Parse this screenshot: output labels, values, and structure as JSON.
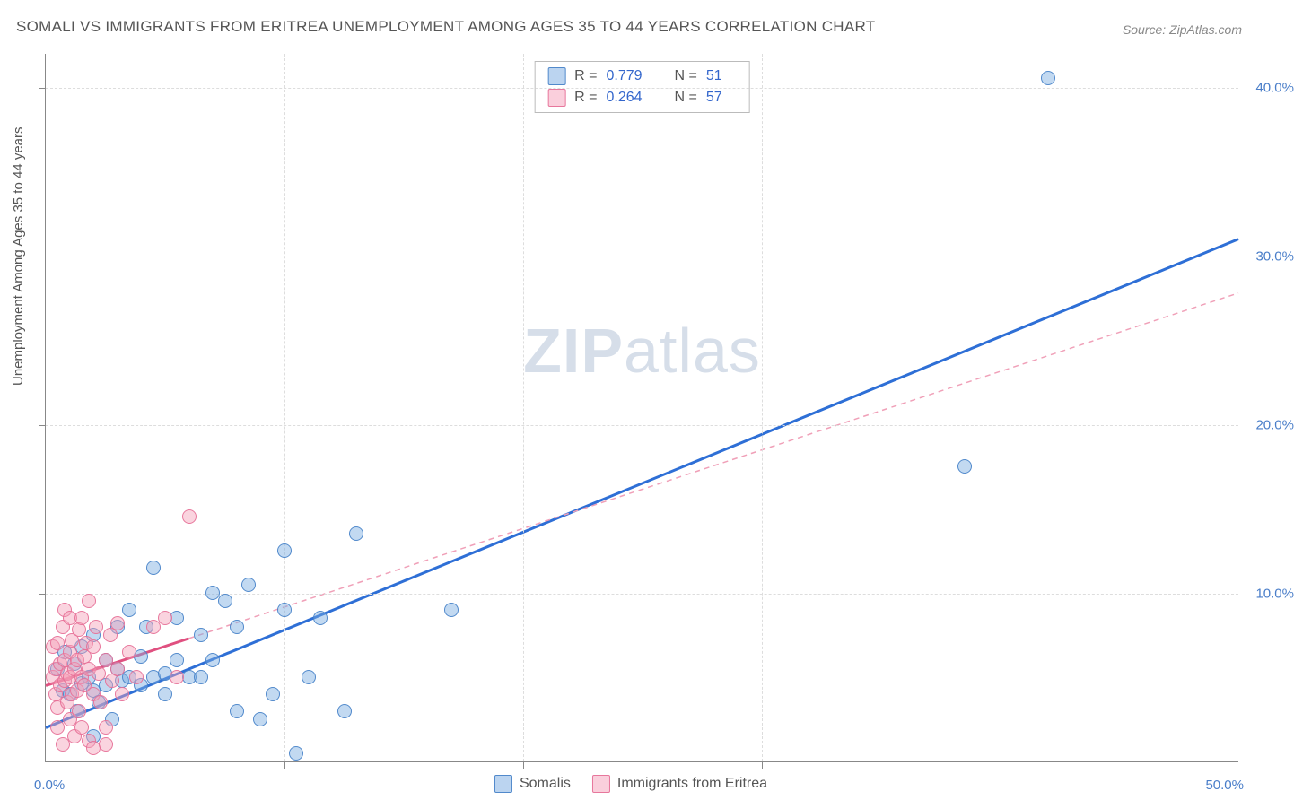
{
  "title": "SOMALI VS IMMIGRANTS FROM ERITREA UNEMPLOYMENT AMONG AGES 35 TO 44 YEARS CORRELATION CHART",
  "source": "Source: ZipAtlas.com",
  "y_axis_label": "Unemployment Among Ages 35 to 44 years",
  "watermark_a": "ZIP",
  "watermark_b": "atlas",
  "chart": {
    "type": "scatter",
    "xlim": [
      0,
      50
    ],
    "ylim": [
      0,
      42
    ],
    "xtick_start_label": "0.0%",
    "xtick_end_label": "50.0%",
    "ytick_labels": [
      "10.0%",
      "20.0%",
      "30.0%",
      "40.0%"
    ],
    "ytick_values": [
      10,
      20,
      30,
      40
    ],
    "xtick_grid_values": [
      10,
      20,
      30,
      40
    ],
    "grid_color": "#dddddd",
    "background_color": "#ffffff",
    "axis_color": "#888888",
    "label_color": "#555555",
    "tick_label_color": "#4a7ec9",
    "tick_label_fontsize": 15,
    "title_fontsize": 17,
    "point_radius": 8,
    "series": [
      {
        "name": "Somalis",
        "color_fill": "rgba(120,170,225,0.45)",
        "color_stroke": "rgba(70,130,200,0.9)",
        "r": 0.779,
        "n": 51,
        "trend": {
          "x1": 0,
          "y1": 2.0,
          "x2": 50,
          "y2": 31.0,
          "stroke": "#2e6fd6",
          "width": 3,
          "dash": "none"
        },
        "points": [
          [
            0.5,
            5.5
          ],
          [
            0.7,
            4.2
          ],
          [
            0.8,
            6.5
          ],
          [
            1.0,
            4.0
          ],
          [
            1.2,
            5.8
          ],
          [
            1.3,
            3.0
          ],
          [
            1.5,
            4.6
          ],
          [
            1.5,
            6.8
          ],
          [
            1.8,
            5.0
          ],
          [
            2.0,
            4.2
          ],
          [
            2.0,
            7.5
          ],
          [
            2.0,
            1.5
          ],
          [
            2.2,
            3.5
          ],
          [
            2.5,
            4.5
          ],
          [
            2.5,
            6.0
          ],
          [
            2.8,
            2.5
          ],
          [
            3.0,
            5.5
          ],
          [
            3.0,
            8.0
          ],
          [
            3.2,
            4.8
          ],
          [
            3.5,
            9.0
          ],
          [
            3.5,
            5.0
          ],
          [
            4.0,
            6.2
          ],
          [
            4.0,
            4.5
          ],
          [
            4.2,
            8.0
          ],
          [
            4.5,
            5.0
          ],
          [
            4.5,
            11.5
          ],
          [
            5.0,
            5.2
          ],
          [
            5.0,
            4.0
          ],
          [
            5.5,
            8.5
          ],
          [
            5.5,
            6.0
          ],
          [
            6.0,
            5.0
          ],
          [
            6.5,
            7.5
          ],
          [
            6.5,
            5.0
          ],
          [
            7.0,
            10.0
          ],
          [
            7.0,
            6.0
          ],
          [
            7.5,
            9.5
          ],
          [
            8.0,
            8.0
          ],
          [
            8.0,
            3.0
          ],
          [
            8.5,
            10.5
          ],
          [
            9.0,
            2.5
          ],
          [
            9.5,
            4.0
          ],
          [
            10.0,
            9.0
          ],
          [
            10.0,
            12.5
          ],
          [
            10.5,
            0.5
          ],
          [
            11.0,
            5.0
          ],
          [
            11.5,
            8.5
          ],
          [
            12.5,
            3.0
          ],
          [
            13.0,
            13.5
          ],
          [
            17.0,
            9.0
          ],
          [
            38.5,
            17.5
          ],
          [
            42.0,
            40.5
          ]
        ]
      },
      {
        "name": "Immigrants from Eritrea",
        "color_fill": "rgba(245,160,185,0.45)",
        "color_stroke": "rgba(230,110,150,0.9)",
        "r": 0.264,
        "n": 57,
        "trend_solid": {
          "x1": 0,
          "y1": 4.5,
          "x2": 6,
          "y2": 7.3,
          "stroke": "#e05080",
          "width": 3,
          "dash": "none"
        },
        "trend_dashed": {
          "x1": 6,
          "y1": 7.3,
          "x2": 50,
          "y2": 27.8,
          "stroke": "#f0a0b8",
          "width": 1.5,
          "dash": "6 5"
        },
        "points": [
          [
            0.3,
            5.0
          ],
          [
            0.3,
            6.8
          ],
          [
            0.4,
            4.0
          ],
          [
            0.4,
            5.5
          ],
          [
            0.5,
            3.2
          ],
          [
            0.5,
            7.0
          ],
          [
            0.5,
            2.0
          ],
          [
            0.6,
            5.8
          ],
          [
            0.6,
            4.5
          ],
          [
            0.7,
            8.0
          ],
          [
            0.7,
            1.0
          ],
          [
            0.8,
            6.0
          ],
          [
            0.8,
            4.8
          ],
          [
            0.8,
            9.0
          ],
          [
            0.9,
            5.2
          ],
          [
            0.9,
            3.5
          ],
          [
            1.0,
            6.5
          ],
          [
            1.0,
            2.5
          ],
          [
            1.0,
            5.0
          ],
          [
            1.0,
            8.5
          ],
          [
            1.1,
            4.0
          ],
          [
            1.1,
            7.2
          ],
          [
            1.2,
            5.5
          ],
          [
            1.2,
            1.5
          ],
          [
            1.3,
            6.0
          ],
          [
            1.3,
            4.2
          ],
          [
            1.4,
            7.8
          ],
          [
            1.4,
            3.0
          ],
          [
            1.5,
            5.0
          ],
          [
            1.5,
            8.5
          ],
          [
            1.5,
            2.0
          ],
          [
            1.6,
            6.2
          ],
          [
            1.6,
            4.5
          ],
          [
            1.7,
            7.0
          ],
          [
            1.8,
            5.5
          ],
          [
            1.8,
            9.5
          ],
          [
            1.8,
            1.2
          ],
          [
            2.0,
            4.0
          ],
          [
            2.0,
            6.8
          ],
          [
            2.0,
            0.8
          ],
          [
            2.1,
            8.0
          ],
          [
            2.2,
            5.2
          ],
          [
            2.3,
            3.5
          ],
          [
            2.5,
            6.0
          ],
          [
            2.5,
            1.0
          ],
          [
            2.5,
            2.0
          ],
          [
            2.7,
            7.5
          ],
          [
            2.8,
            4.8
          ],
          [
            3.0,
            5.5
          ],
          [
            3.0,
            8.2
          ],
          [
            3.2,
            4.0
          ],
          [
            3.5,
            6.5
          ],
          [
            3.8,
            5.0
          ],
          [
            4.5,
            8.0
          ],
          [
            5.0,
            8.5
          ],
          [
            5.5,
            5.0
          ],
          [
            6.0,
            14.5
          ]
        ]
      }
    ]
  },
  "legend_top": {
    "rows": [
      {
        "swatch": "blue",
        "r_label": "R =",
        "r_value": "0.779",
        "n_label": "N =",
        "n_value": "51"
      },
      {
        "swatch": "pink",
        "r_label": "R =",
        "r_value": "0.264",
        "n_label": "N =",
        "n_value": "57"
      }
    ]
  },
  "legend_bottom": {
    "items": [
      {
        "swatch": "blue",
        "label": "Somalis"
      },
      {
        "swatch": "pink",
        "label": "Immigrants from Eritrea"
      }
    ]
  }
}
